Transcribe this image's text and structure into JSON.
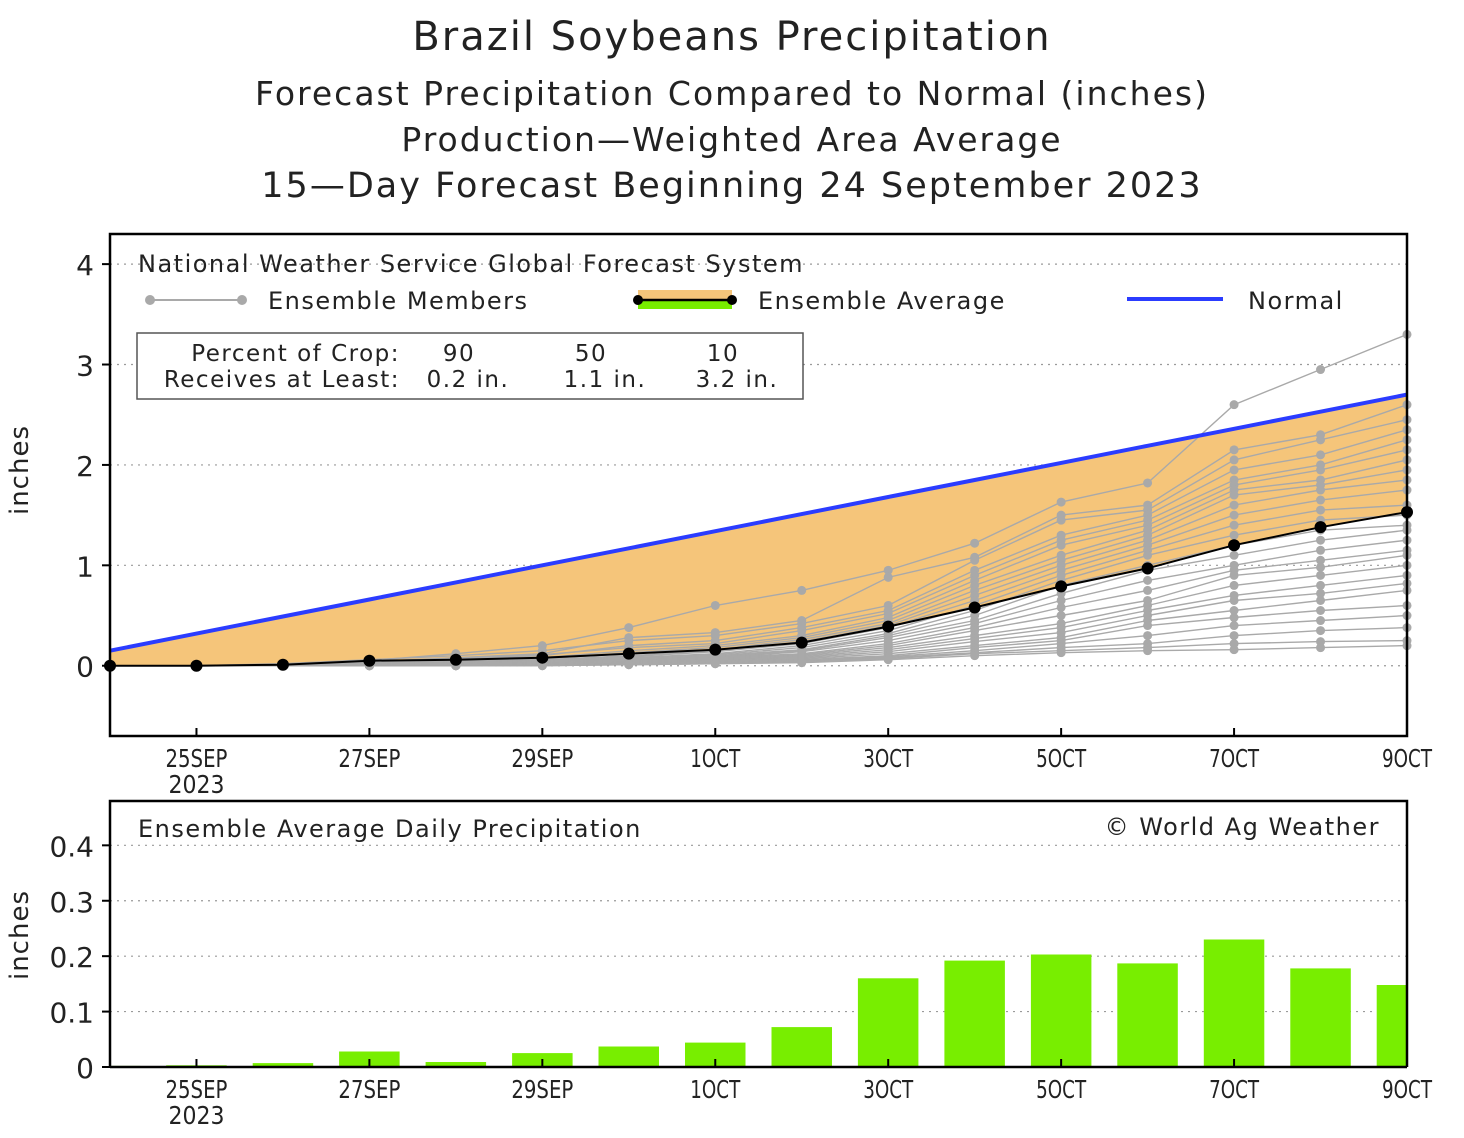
{
  "titles": {
    "line1": "Brazil Soybeans Precipitation",
    "line2": "Forecast Precipitation Compared to Normal (inches)",
    "line3": "Production—Weighted Area Average",
    "line4": "15—Day Forecast Beginning 24 September 2023"
  },
  "colors": {
    "normal": "#2b3cff",
    "band_fill": "#f5c57a",
    "member": "#a9a9a9",
    "average": "#000000",
    "bar": "#78ee00",
    "frame": "#000000",
    "grid": "#9a9a9a"
  },
  "top_panel": {
    "source_label": "National Weather Service Global Forecast System",
    "legend": {
      "members": "Ensemble Members",
      "average": "Ensemble Average",
      "normal": "Normal"
    },
    "crop_table": {
      "row1_label": "Percent of Crop:",
      "row2_label": "Receives at Least:",
      "pct": [
        "90",
        "50",
        "10"
      ],
      "amt": [
        "0.2 in.",
        "1.1 in.",
        "3.2 in."
      ]
    },
    "ylabel": "inches",
    "y_ticks": [
      "0",
      "1",
      "2",
      "3",
      "4"
    ]
  },
  "bottom_panel": {
    "label": "Ensemble Average Daily Precipitation",
    "copyright": "© World Ag Weather",
    "ylabel": "inches",
    "y_ticks": [
      "0",
      "0.1",
      "0.2",
      "0.3",
      "0.4"
    ]
  },
  "x_tick_labels": [
    "25SEP",
    "27SEP",
    "29SEP",
    "1OCT",
    "3OCT",
    "5OCT",
    "7OCT",
    "9OCT"
  ],
  "x_year_label": "2023",
  "chart_data": [
    {
      "type": "line",
      "title": "Forecast Precipitation Compared to Normal (inches)",
      "ylabel": "inches",
      "x": [
        "24SEP",
        "25SEP",
        "26SEP",
        "27SEP",
        "28SEP",
        "29SEP",
        "30SEP",
        "1OCT",
        "2OCT",
        "3OCT",
        "4OCT",
        "5OCT",
        "6OCT",
        "7OCT",
        "8OCT",
        "9OCT"
      ],
      "ylim": [
        -0.7,
        4.3
      ],
      "grid": true,
      "series": [
        {
          "name": "Normal",
          "values": [
            0.15,
            0.32,
            0.49,
            0.66,
            0.83,
            1.0,
            1.17,
            1.34,
            1.51,
            1.68,
            1.85,
            2.02,
            2.19,
            2.36,
            2.53,
            2.7
          ]
        },
        {
          "name": "Ensemble Average",
          "values": [
            0.0,
            0.0,
            0.01,
            0.05,
            0.06,
            0.08,
            0.12,
            0.16,
            0.23,
            0.39,
            0.58,
            0.79,
            0.97,
            1.2,
            1.38,
            1.53
          ]
        }
      ],
      "members": [
        [
          0,
          0,
          0.01,
          0.05,
          0.12,
          0.2,
          0.38,
          0.6,
          0.75,
          0.95,
          1.22,
          1.63,
          1.82,
          2.6,
          2.95,
          3.3
        ],
        [
          0,
          0,
          0.01,
          0.04,
          0.08,
          0.12,
          0.28,
          0.33,
          0.45,
          0.88,
          1.08,
          1.5,
          1.6,
          2.15,
          2.3,
          2.6
        ],
        [
          0,
          0,
          0.02,
          0.06,
          0.1,
          0.15,
          0.25,
          0.3,
          0.42,
          0.6,
          1.05,
          1.45,
          1.55,
          2.05,
          2.25,
          2.45
        ],
        [
          0,
          0,
          0.01,
          0.03,
          0.06,
          0.1,
          0.2,
          0.25,
          0.38,
          0.55,
          0.95,
          1.3,
          1.5,
          1.95,
          2.1,
          2.35
        ],
        [
          0,
          0,
          0.01,
          0.04,
          0.07,
          0.11,
          0.18,
          0.22,
          0.35,
          0.52,
          0.9,
          1.25,
          1.45,
          1.85,
          2.0,
          2.25
        ],
        [
          0,
          0,
          0.0,
          0.03,
          0.05,
          0.08,
          0.15,
          0.2,
          0.3,
          0.48,
          0.85,
          1.2,
          1.4,
          1.8,
          1.95,
          2.15
        ],
        [
          0,
          0,
          0.01,
          0.02,
          0.05,
          0.07,
          0.13,
          0.18,
          0.28,
          0.45,
          0.8,
          1.1,
          1.35,
          1.75,
          1.85,
          2.05
        ],
        [
          0,
          0,
          0.0,
          0.03,
          0.04,
          0.07,
          0.12,
          0.16,
          0.26,
          0.42,
          0.75,
          1.05,
          1.3,
          1.7,
          1.8,
          1.95
        ],
        [
          0,
          0,
          0.0,
          0.02,
          0.04,
          0.06,
          0.1,
          0.15,
          0.24,
          0.4,
          0.7,
          1.0,
          1.25,
          1.6,
          1.75,
          1.85
        ],
        [
          0,
          0,
          0.0,
          0.02,
          0.03,
          0.06,
          0.09,
          0.14,
          0.22,
          0.38,
          0.65,
          0.95,
          1.2,
          1.5,
          1.65,
          1.75
        ],
        [
          0,
          0,
          0.0,
          0.01,
          0.03,
          0.05,
          0.08,
          0.12,
          0.2,
          0.35,
          0.6,
          0.9,
          1.15,
          1.4,
          1.55,
          1.6
        ],
        [
          0,
          0,
          0.0,
          0.01,
          0.02,
          0.05,
          0.08,
          0.11,
          0.18,
          0.32,
          0.55,
          0.85,
          1.1,
          1.3,
          1.45,
          1.5
        ],
        [
          0,
          0,
          0.0,
          0.01,
          0.02,
          0.04,
          0.07,
          0.1,
          0.16,
          0.3,
          0.5,
          0.8,
          1.0,
          1.2,
          1.35,
          1.4
        ],
        [
          0,
          0,
          0.0,
          0.01,
          0.02,
          0.04,
          0.06,
          0.09,
          0.15,
          0.28,
          0.45,
          0.72,
          0.95,
          1.1,
          1.25,
          1.35
        ],
        [
          0,
          0,
          0.0,
          0.01,
          0.02,
          0.03,
          0.06,
          0.08,
          0.14,
          0.25,
          0.42,
          0.65,
          0.85,
          1.0,
          1.15,
          1.25
        ],
        [
          0,
          0,
          0.0,
          0.0,
          0.01,
          0.03,
          0.05,
          0.08,
          0.12,
          0.22,
          0.38,
          0.58,
          0.75,
          0.95,
          1.05,
          1.15
        ],
        [
          0,
          0,
          0.0,
          0.0,
          0.01,
          0.03,
          0.05,
          0.07,
          0.11,
          0.2,
          0.35,
          0.5,
          0.65,
          0.9,
          0.98,
          1.1
        ],
        [
          0,
          0,
          0.0,
          0.0,
          0.01,
          0.02,
          0.04,
          0.06,
          0.1,
          0.18,
          0.3,
          0.42,
          0.6,
          0.8,
          0.9,
          1.0
        ],
        [
          0,
          0,
          0.0,
          0.0,
          0.01,
          0.02,
          0.04,
          0.05,
          0.09,
          0.16,
          0.27,
          0.38,
          0.55,
          0.7,
          0.8,
          0.9
        ],
        [
          0,
          0,
          0.0,
          0.0,
          0.01,
          0.02,
          0.03,
          0.05,
          0.08,
          0.14,
          0.24,
          0.33,
          0.5,
          0.65,
          0.72,
          0.82
        ],
        [
          0,
          0,
          0.0,
          0.0,
          0.0,
          0.01,
          0.03,
          0.04,
          0.07,
          0.12,
          0.2,
          0.28,
          0.45,
          0.55,
          0.65,
          0.75
        ],
        [
          0,
          0,
          0.0,
          0.0,
          0.0,
          0.01,
          0.02,
          0.04,
          0.06,
          0.1,
          0.18,
          0.25,
          0.4,
          0.48,
          0.55,
          0.6
        ],
        [
          0,
          0,
          0.0,
          0.0,
          0.0,
          0.01,
          0.02,
          0.03,
          0.05,
          0.09,
          0.15,
          0.22,
          0.3,
          0.4,
          0.45,
          0.5
        ],
        [
          0,
          0,
          0.0,
          0.0,
          0.0,
          0.01,
          0.02,
          0.03,
          0.04,
          0.08,
          0.13,
          0.18,
          0.22,
          0.3,
          0.35,
          0.38
        ],
        [
          0,
          0,
          0.0,
          0.0,
          0.0,
          0.0,
          0.01,
          0.02,
          0.04,
          0.07,
          0.12,
          0.15,
          0.18,
          0.22,
          0.24,
          0.25
        ],
        [
          0,
          0,
          0.0,
          0.0,
          0.0,
          0.0,
          0.01,
          0.02,
          0.03,
          0.06,
          0.1,
          0.13,
          0.15,
          0.16,
          0.18,
          0.2
        ]
      ]
    },
    {
      "type": "bar",
      "title": "Ensemble Average Daily Precipitation",
      "ylabel": "inches",
      "categories": [
        "24SEP",
        "25SEP",
        "26SEP",
        "27SEP",
        "28SEP",
        "29SEP",
        "30SEP",
        "1OCT",
        "2OCT",
        "3OCT",
        "4OCT",
        "5OCT",
        "6OCT",
        "7OCT",
        "8OCT",
        "9OCT"
      ],
      "values": [
        0.002,
        0.003,
        0.007,
        0.028,
        0.009,
        0.025,
        0.037,
        0.044,
        0.072,
        0.16,
        0.192,
        0.203,
        0.187,
        0.23,
        0.178,
        0.148
      ],
      "ylim": [
        0,
        0.48
      ],
      "grid": true
    }
  ]
}
